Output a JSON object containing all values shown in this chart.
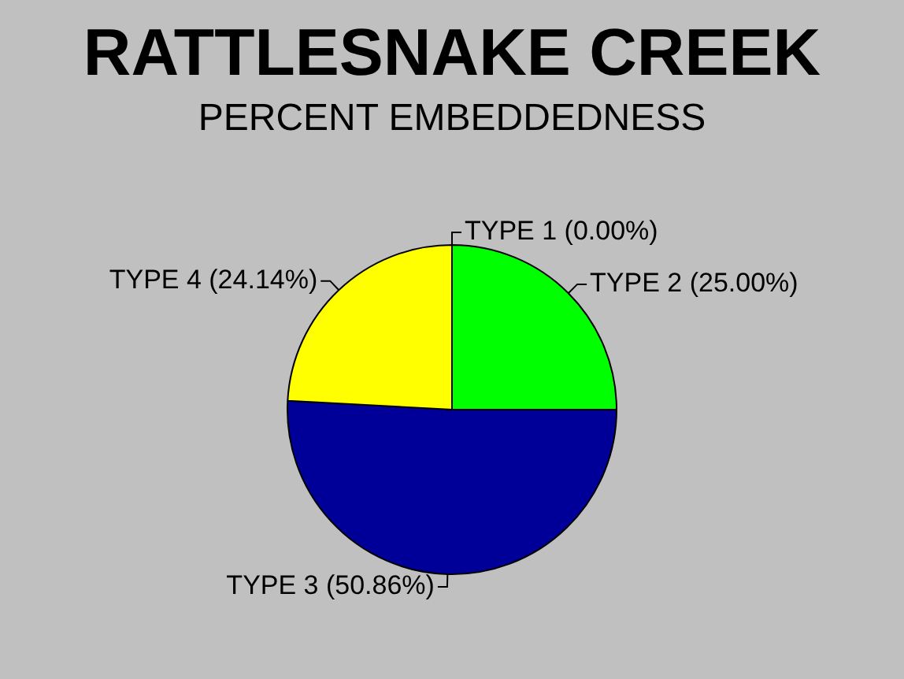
{
  "chart_data": {
    "type": "pie",
    "title": "RATTLESNAKE CREEK",
    "subtitle": "PERCENT EMBEDDEDNESS",
    "categories": [
      "TYPE 1 (0.00%)",
      "TYPE 2 (25.00%)",
      "TYPE 3 (50.86%)",
      "TYPE 4 (24.14%)"
    ],
    "values": [
      0,
      25,
      50.86,
      24.14
    ],
    "colors": [
      "#00ff00",
      "#00ff00",
      "#000099",
      "#ffff00"
    ]
  }
}
